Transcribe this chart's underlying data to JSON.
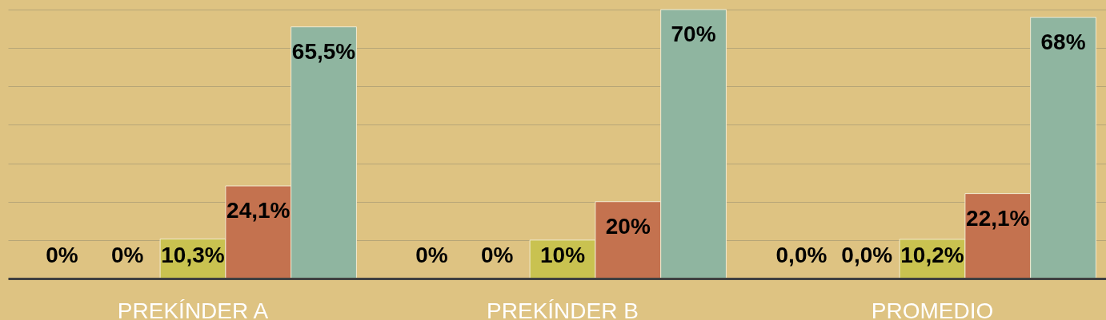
{
  "chart_data": {
    "type": "bar",
    "categories": [
      "PREKÍNDER A",
      "PREKÍNDER B",
      "PROMEDIO"
    ],
    "series": [
      {
        "color": "#7f9a47",
        "values": [
          0,
          0,
          0
        ],
        "value_labels": [
          "0%",
          "0%",
          "0,0%"
        ]
      },
      {
        "color": "#4f7fa8",
        "values": [
          0,
          0,
          0
        ],
        "value_labels": [
          "0%",
          "0%",
          "0,0%"
        ]
      },
      {
        "color": "#c9c250",
        "values": [
          10.3,
          10,
          10.2
        ],
        "value_labels": [
          "10,3%",
          "10%",
          "10,2%"
        ]
      },
      {
        "color": "#c4724f",
        "values": [
          24.1,
          20,
          22.1
        ],
        "value_labels": [
          "24,1%",
          "20%",
          "22,1%"
        ]
      },
      {
        "color": "#8fb5a0",
        "values": [
          65.5,
          70,
          68
        ],
        "value_labels": [
          "65,5%",
          "70%",
          "68%"
        ]
      }
    ],
    "ylim": [
      0,
      70
    ],
    "yticks": [
      0,
      10,
      20,
      30,
      40,
      50,
      60,
      70
    ],
    "grid": "y",
    "tick_labels": "x"
  }
}
